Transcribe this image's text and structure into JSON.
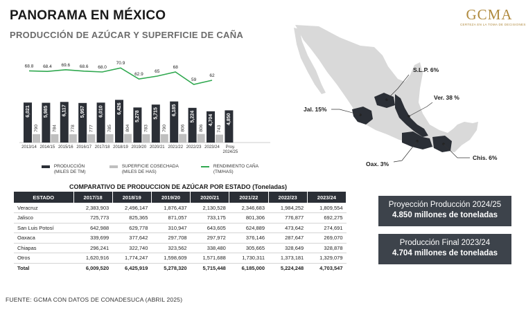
{
  "header": {
    "title": "PANORAMA EN MÉXICO",
    "subtitle": "PRODUCCIÓN DE AZÚCAR Y SUPERFICIE DE CAÑA"
  },
  "logo": {
    "mark": "GCMA",
    "tagline": "CERTEZA EN LA TOMA DE DECISIONES"
  },
  "colors": {
    "production": "#2b2f36",
    "surface": "#bfbfbf",
    "yield": "#2fa84f",
    "box": "#3d434b",
    "map_highlight": "#2b2f36",
    "map_base": "#d9d9d9"
  },
  "chart_data": {
    "type": "bar",
    "categories": [
      "2013/14",
      "2014/15",
      "2015/16",
      "2016/17",
      "2017/18",
      "2018/19",
      "2019/20",
      "2020/21",
      "2021/22",
      "2022/23",
      "2023/24",
      "Proy. 2024/25"
    ],
    "series": [
      {
        "name": "PRODUCCIÓN (MILES DE TM)",
        "values": [
          6021,
          5985,
          6117,
          5957,
          6010,
          6426,
          5278,
          5715,
          6185,
          5224,
          4704,
          4850
        ],
        "labels": [
          "6,021",
          "5,985",
          "6,117",
          "5,957",
          "6,010",
          "6,426",
          "5,278",
          "5,715",
          "6,185",
          "5,224",
          "4,704",
          "4,850"
        ]
      },
      {
        "name": "SUPERFICIE COSECHADA (MILES DE HAS)",
        "values": [
          790,
          784,
          778,
          777,
          785,
          804,
          783,
          790,
          806,
          806,
          743,
          null
        ]
      },
      {
        "name": "RENDIMIENTO CAÑA (TM/HAS)",
        "type": "line",
        "values": [
          68.8,
          68.4,
          69.6,
          68.6,
          68.0,
          70.9,
          62.9,
          65,
          68,
          59,
          62,
          null
        ],
        "labels": [
          "68.8",
          "68.4",
          "69.6",
          "68.6",
          "68.0",
          "70.9",
          "62.9",
          "65",
          "68",
          "59",
          "62",
          ""
        ]
      }
    ],
    "legend": [
      {
        "line1": "PRODUCCIÓN",
        "line2": "(MILES DE TM)"
      },
      {
        "line1": "SUPERFICIE COSECHADA",
        "line2": "(MILES DE HAS)"
      },
      {
        "line1": "RENDIMIENTO CAÑA",
        "line2": "(TM/HAS)"
      }
    ]
  },
  "map": {
    "labels": [
      "S.L.P. 6%",
      "Ver. 38 %",
      "Jal. 15%",
      "Oax. 3%",
      "Chis. 6%"
    ]
  },
  "table": {
    "title": "COMPARATIVO DE PRODUCCION DE AZÚCAR POR ESTADO (Toneladas)",
    "headers": [
      "ESTADO",
      "2017/18",
      "2018/19",
      "2019/20",
      "2020/21",
      "2021/22",
      "2022/23",
      "2023/24"
    ],
    "rows": [
      [
        "Veracruz",
        "2,383,903",
        "2,496,147",
        "1,876,437",
        "2,130,528",
        "2,346,683",
        "1,984,252",
        "1,809,554"
      ],
      [
        "Jalisco",
        "725,773",
        "825,365",
        "871,057",
        "733,175",
        "801,306",
        "776,877",
        "692,275"
      ],
      [
        "San Luis Potosí",
        "642,988",
        "629,778",
        "310,947",
        "643,605",
        "624,889",
        "473,642",
        "274,691"
      ],
      [
        "Oaxaca",
        "339,699",
        "377,642",
        "297,708",
        "297,972",
        "376,146",
        "287,647",
        "269,070"
      ],
      [
        "Chiapas",
        "296,241",
        "322,740",
        "323,562",
        "338,480",
        "305,665",
        "328,649",
        "328,878"
      ],
      [
        "Otros",
        "1,620,916",
        "1,774,247",
        "1,598,609",
        "1,571,688",
        "1,730,311",
        "1,373,181",
        "1,329,079"
      ],
      [
        "Total",
        "6,009,520",
        "6,425,919",
        "5,278,320",
        "5,715,448",
        "6,185,000",
        "5,224,248",
        "4,703,547"
      ]
    ]
  },
  "boxes": {
    "projection": {
      "line1": "Proyección Producción 2024/25",
      "line2": "4.850 millones de toneladas"
    },
    "final": {
      "line1": "Producción Final 2023/24",
      "line2": "4.704 millones de toneladas"
    }
  },
  "source": "FUENTE: GCMA CON DATOS DE CONADESUCA (ABRIL 2025)"
}
